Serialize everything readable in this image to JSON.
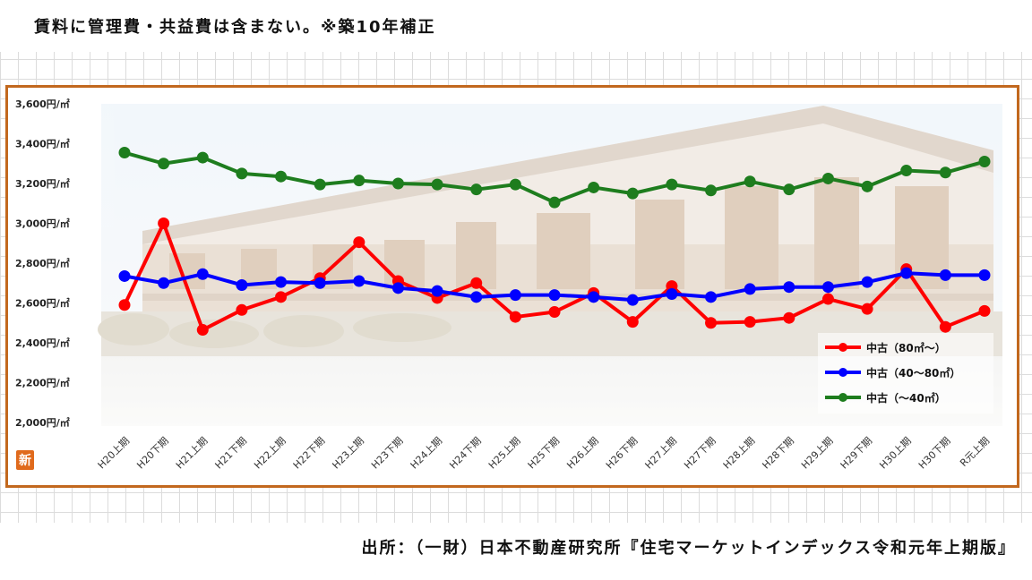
{
  "note": "賃料に管理費・共益費は含まない。※築10年補正",
  "source": "出所：（一財）日本不動産研究所『住宅マーケットインデックス令和元年上期版』",
  "badge": "新",
  "colors": {
    "frame": "#c2681e",
    "red": "#ff0000",
    "blue": "#0000ff",
    "green": "#1e7d1e"
  },
  "chart_data": {
    "type": "line",
    "title": "",
    "xlabel": "",
    "ylabel": "",
    "ylim": [
      2000,
      3600
    ],
    "y_ticks": [
      {
        "value": 2000,
        "label": "2,000円/㎡"
      },
      {
        "value": 2200,
        "label": "2,200円/㎡"
      },
      {
        "value": 2400,
        "label": "2,400円/㎡"
      },
      {
        "value": 2600,
        "label": "2,600円/㎡"
      },
      {
        "value": 2800,
        "label": "2,800円/㎡"
      },
      {
        "value": 3000,
        "label": "3,000円/㎡"
      },
      {
        "value": 3200,
        "label": "3,200円/㎡"
      },
      {
        "value": 3400,
        "label": "3,400円/㎡"
      },
      {
        "value": 3600,
        "label": "3,600円/㎡"
      }
    ],
    "categories": [
      "H20上期",
      "H20下期",
      "H21上期",
      "H21下期",
      "H22上期",
      "H22下期",
      "H23上期",
      "H23下期",
      "H24上期",
      "H24下期",
      "H25上期",
      "H25下期",
      "H26上期",
      "H26下期",
      "H27上期",
      "H27下期",
      "H28上期",
      "H28下期",
      "H29上期",
      "H29下期",
      "H30上期",
      "H30下期",
      "R元上期"
    ],
    "grid": false,
    "legend_position": "bottom-right",
    "series": [
      {
        "name": "中古（80㎡～）",
        "color": "#ff0000",
        "values": [
          2590,
          3000,
          2465,
          2565,
          2630,
          2725,
          2905,
          2710,
          2625,
          2700,
          2530,
          2555,
          2650,
          2505,
          2685,
          2500,
          2505,
          2525,
          2620,
          2570,
          2770,
          2480,
          2560
        ]
      },
      {
        "name": "中古（40～80㎡）",
        "color": "#0000ff",
        "values": [
          2735,
          2700,
          2745,
          2690,
          2705,
          2700,
          2710,
          2675,
          2660,
          2630,
          2640,
          2640,
          2630,
          2615,
          2645,
          2630,
          2670,
          2680,
          2680,
          2705,
          2750,
          2740,
          2740
        ]
      },
      {
        "name": "中古（～40㎡）",
        "color": "#1e7d1e",
        "values": [
          3355,
          3300,
          3330,
          3250,
          3235,
          3195,
          3215,
          3200,
          3195,
          3170,
          3195,
          3105,
          3180,
          3150,
          3195,
          3165,
          3210,
          3170,
          3225,
          3185,
          3265,
          3255,
          3310
        ]
      }
    ]
  }
}
